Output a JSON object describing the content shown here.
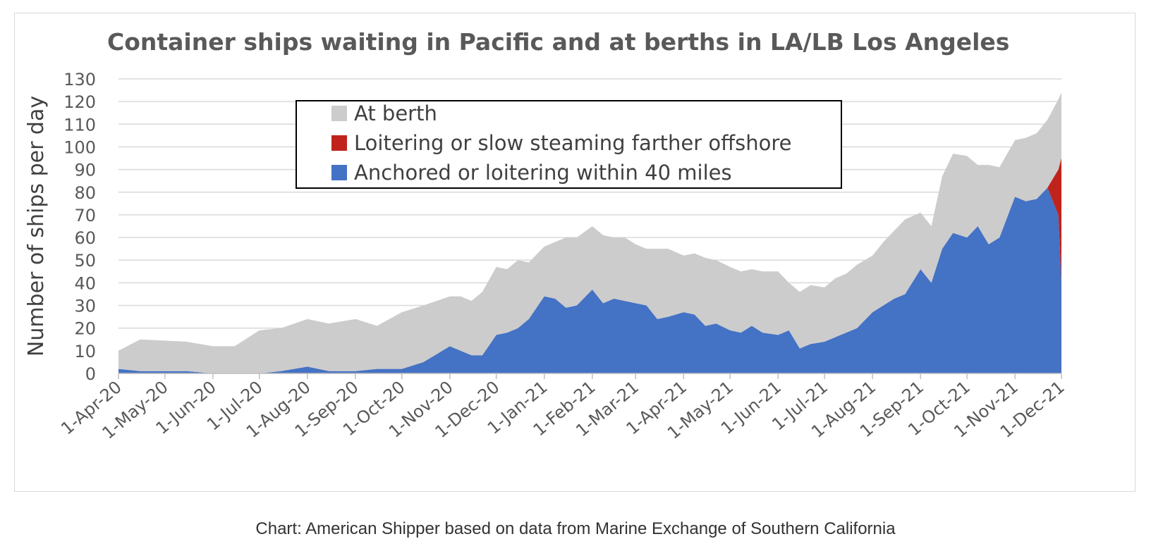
{
  "chart_data": {
    "type": "area",
    "stacked": true,
    "title": "Container ships waiting in Pacific and at berths in LA/LB Los Angeles",
    "xlabel": "",
    "ylabel": "Number of ships per day",
    "ylim": [
      0,
      130
    ],
    "yticks": [
      0,
      10,
      20,
      30,
      40,
      50,
      60,
      70,
      80,
      90,
      100,
      110,
      120,
      130
    ],
    "grid": true,
    "legend_position": "top-center",
    "x_ticks": [
      "1-Apr-20",
      "1-May-20",
      "1-Jun-20",
      "1-Jul-20",
      "1-Aug-20",
      "1-Sep-20",
      "1-Oct-20",
      "1-Nov-20",
      "1-Dec-20",
      "1-Jan-21",
      "1-Feb-21",
      "1-Mar-21",
      "1-Apr-21",
      "1-May-21",
      "1-Jun-21",
      "1-Jul-21",
      "1-Aug-21",
      "1-Sep-21",
      "1-Oct-21",
      "1-Nov-21",
      "1-Dec-21"
    ],
    "x": [
      "2020-04-01",
      "2020-04-15",
      "2020-05-15",
      "2020-06-01",
      "2020-06-15",
      "2020-07-01",
      "2020-07-15",
      "2020-08-01",
      "2020-08-15",
      "2020-09-01",
      "2020-09-15",
      "2020-10-01",
      "2020-10-15",
      "2020-11-01",
      "2020-11-08",
      "2020-11-15",
      "2020-11-22",
      "2020-12-01",
      "2020-12-08",
      "2020-12-15",
      "2020-12-22",
      "2021-01-01",
      "2021-01-08",
      "2021-01-15",
      "2021-01-22",
      "2021-02-01",
      "2021-02-08",
      "2021-02-15",
      "2021-02-22",
      "2021-03-01",
      "2021-03-08",
      "2021-03-15",
      "2021-03-22",
      "2021-04-01",
      "2021-04-08",
      "2021-04-15",
      "2021-04-22",
      "2021-05-01",
      "2021-05-08",
      "2021-05-15",
      "2021-05-22",
      "2021-06-01",
      "2021-06-08",
      "2021-06-15",
      "2021-06-22",
      "2021-07-01",
      "2021-07-08",
      "2021-07-15",
      "2021-07-22",
      "2021-08-01",
      "2021-08-08",
      "2021-08-15",
      "2021-08-22",
      "2021-09-01",
      "2021-09-08",
      "2021-09-15",
      "2021-09-22",
      "2021-10-01",
      "2021-10-08",
      "2021-10-15",
      "2021-10-22",
      "2021-11-01",
      "2021-11-08",
      "2021-11-15",
      "2021-11-22",
      "2021-11-29",
      "2021-12-01"
    ],
    "series": [
      {
        "name": "Anchored or loitering within 40 miles",
        "color": "#4472c4",
        "values": [
          2,
          1,
          1,
          0,
          0,
          0,
          1,
          3,
          1,
          1,
          2,
          2,
          5,
          12,
          10,
          8,
          8,
          17,
          18,
          20,
          24,
          34,
          33,
          29,
          30,
          37,
          31,
          33,
          32,
          31,
          30,
          24,
          25,
          27,
          26,
          21,
          22,
          19,
          18,
          21,
          18,
          17,
          19,
          11,
          13,
          14,
          16,
          18,
          20,
          27,
          30,
          33,
          35,
          46,
          40,
          55,
          62,
          60,
          65,
          57,
          60,
          78,
          76,
          77,
          82,
          70,
          40
        ]
      },
      {
        "name": "Loitering or slow steaming farther offshore",
        "color": "#c0231c",
        "values": [
          0,
          0,
          0,
          0,
          0,
          0,
          0,
          0,
          0,
          0,
          0,
          0,
          0,
          0,
          0,
          0,
          0,
          0,
          0,
          0,
          0,
          0,
          0,
          0,
          0,
          0,
          0,
          0,
          0,
          0,
          0,
          0,
          0,
          0,
          0,
          0,
          0,
          0,
          0,
          0,
          0,
          0,
          0,
          0,
          0,
          0,
          0,
          0,
          0,
          0,
          0,
          0,
          0,
          0,
          0,
          0,
          0,
          0,
          0,
          0,
          0,
          0,
          0,
          0,
          0,
          20,
          55
        ]
      },
      {
        "name": "At berth",
        "color": "#cccccc",
        "values": [
          8,
          14,
          13,
          12,
          12,
          19,
          19,
          21,
          21,
          23,
          19,
          25,
          25,
          22,
          24,
          24,
          28,
          30,
          28,
          30,
          25,
          22,
          25,
          31,
          30,
          28,
          30,
          27,
          28,
          26,
          25,
          31,
          30,
          25,
          27,
          30,
          28,
          28,
          27,
          25,
          27,
          28,
          21,
          25,
          26,
          24,
          26,
          26,
          28,
          25,
          28,
          30,
          33,
          25,
          25,
          32,
          35,
          36,
          27,
          35,
          31,
          25,
          28,
          29,
          30,
          31,
          29
        ]
      }
    ],
    "legend": [
      {
        "name": "At berth",
        "color": "#cccccc"
      },
      {
        "name": "Loitering or slow steaming farther offshore",
        "color": "#c0231c"
      },
      {
        "name": "Anchored or loitering within 40 miles",
        "color": "#4472c4"
      }
    ]
  },
  "caption": "Chart: American Shipper based on data from Marine Exchange of Southern California"
}
